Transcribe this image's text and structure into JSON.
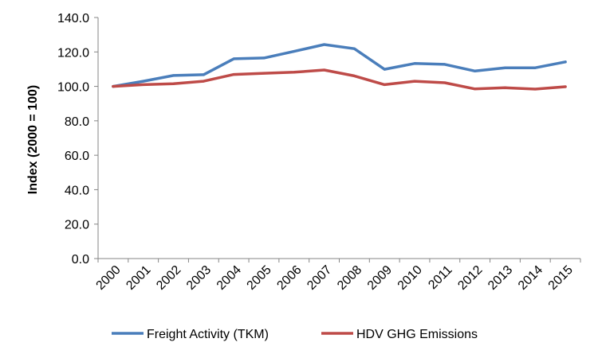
{
  "chart_data": {
    "type": "line",
    "title": "",
    "xlabel": "",
    "ylabel": "Index (2000 = 100)",
    "categories": [
      "2000",
      "2001",
      "2002",
      "2003",
      "2004",
      "2005",
      "2006",
      "2007",
      "2008",
      "2009",
      "2010",
      "2011",
      "2012",
      "2013",
      "2014",
      "2015"
    ],
    "ylim": [
      0,
      140
    ],
    "yticks": [
      "0.0",
      "20.0",
      "40.0",
      "60.0",
      "80.0",
      "100.0",
      "120.0",
      "140.0"
    ],
    "grid": false,
    "legend_position": "bottom",
    "series": [
      {
        "name": "Freight Activity (TKM)",
        "color": "#4a7ebb",
        "values": [
          100.0,
          103.0,
          106.3,
          106.8,
          116.0,
          116.5,
          120.3,
          124.3,
          121.9,
          109.9,
          113.3,
          112.8,
          108.9,
          110.8,
          110.8,
          114.2
        ]
      },
      {
        "name": "HDV GHG Emissions",
        "color": "#be4b48",
        "values": [
          100.0,
          101.0,
          101.5,
          103.0,
          106.9,
          107.6,
          108.2,
          109.5,
          106.1,
          101.0,
          103.0,
          102.1,
          98.5,
          99.2,
          98.4,
          99.8
        ]
      }
    ]
  }
}
